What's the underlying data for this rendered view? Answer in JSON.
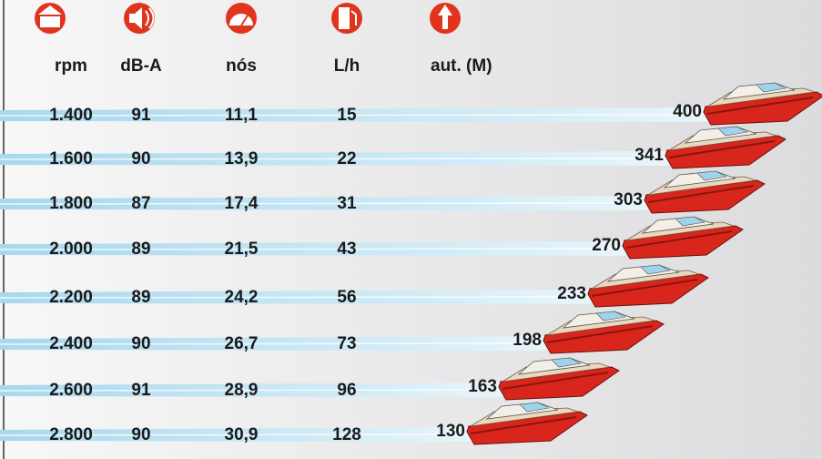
{
  "header": {
    "columns": [
      "rpm",
      "dB-A",
      "nós",
      "L/h",
      "aut. (M)"
    ]
  },
  "table": {
    "rows": [
      [
        "1.400",
        "91",
        "11,1",
        "15",
        "400"
      ],
      [
        "1.600",
        "90",
        "13,9",
        "22",
        "341"
      ],
      [
        "1.800",
        "87",
        "17,4",
        "31",
        "303"
      ],
      [
        "2.000",
        "89",
        "21,5",
        "43",
        "270"
      ],
      [
        "2.200",
        "89",
        "24,2",
        "56",
        "233"
      ],
      [
        "2.400",
        "90",
        "26,7",
        "73",
        "198"
      ],
      [
        "2.600",
        "91",
        "28,9",
        "96",
        "163"
      ],
      [
        "2.800",
        "90",
        "30,9",
        "128",
        "130"
      ]
    ]
  }
}
